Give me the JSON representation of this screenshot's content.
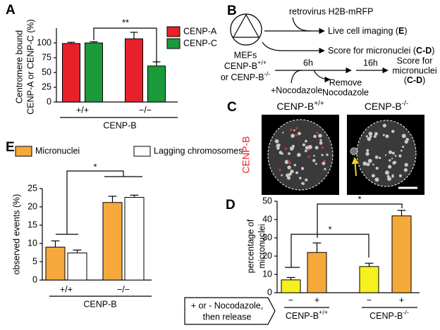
{
  "chart_data": [
    {
      "type": "bar",
      "label": "A",
      "ylabel": [
        "Centromere bound",
        "CENP-A or CENP-C (%)"
      ],
      "xlabel": "CENP-B",
      "categories": [
        "+/+",
        "−/−"
      ],
      "series": [
        {
          "name": "CENP-A",
          "color": "#e8202a",
          "values": [
            99,
            107
          ],
          "errors": [
            2,
            11
          ]
        },
        {
          "name": "CENP-C",
          "color": "#1a9a3a",
          "values": [
            100,
            61
          ],
          "errors": [
            2,
            7
          ]
        }
      ],
      "ylim": [
        0,
        125
      ],
      "yticks": [
        0,
        25,
        50,
        75,
        100
      ],
      "annotations": [
        "**"
      ]
    },
    {
      "type": "bar",
      "label": "E",
      "ylabel": [
        "observed events (%)"
      ],
      "xlabel": "CENP-B",
      "categories": [
        "+/+",
        "−/−"
      ],
      "series": [
        {
          "name": "Micronuclei",
          "color": "#f6a93b",
          "values": [
            9,
            21.2
          ],
          "errors": [
            1.7,
            1.7
          ]
        },
        {
          "name": "Lagging chromosomes",
          "color": "#ffffff",
          "values": [
            7.4,
            22.6
          ],
          "errors": [
            0.8,
            0.6
          ]
        }
      ],
      "ylim": [
        0,
        25
      ],
      "yticks": [
        0,
        5,
        10,
        15,
        20,
        25
      ],
      "annotations": [
        "*"
      ]
    },
    {
      "type": "bar",
      "label": "D",
      "ylabel": [
        "percentage of",
        "micronuclei"
      ],
      "categories": [
        "−",
        "+",
        "−",
        "+"
      ],
      "values": [
        7,
        22,
        14.3,
        42
      ],
      "errors": [
        1.3,
        5.2,
        1.8,
        3
      ],
      "colors": [
        "#f5f01e",
        "#f6a93b",
        "#f5f01e",
        "#f6a93b"
      ],
      "group_labels": [
        {
          "text": "CENP-B",
          "sup": "+/+"
        },
        {
          "text": "CENP-B",
          "sup": "-/-"
        }
      ],
      "note": [
        "+ or - Nocodazole,",
        "then release"
      ],
      "ylim": [
        0,
        50
      ],
      "yticks": [
        0,
        10,
        20,
        30,
        40,
        50
      ],
      "annotations": [
        "*",
        "*"
      ]
    }
  ],
  "diagram": {
    "label": "B",
    "cell": [
      "MEFs",
      {
        "text": "CENP-B",
        "sup": "+/+"
      },
      {
        "text": "or CENP-B",
        "sup": "-/-"
      }
    ],
    "virus": "retrovirus H2B-mRFP",
    "live": [
      "Live cell imaging (",
      "E",
      ")"
    ],
    "score1": [
      "Score for micronuclei (",
      "C-D",
      ")"
    ],
    "drug": "+Nocodazole",
    "t1": "6h",
    "t2": "16h",
    "remove": [
      "Remove",
      "Nocodazole"
    ],
    "score2": [
      "Score for",
      "micronuclei"
    ],
    "score2_ref": [
      "(",
      "C-D",
      ")"
    ]
  },
  "images": {
    "label": "C",
    "stain": "CENP-B",
    "panels": [
      {
        "text": "CENP-B",
        "sup": "+/+"
      },
      {
        "text": "CENP-B",
        "sup": "-/-"
      }
    ]
  }
}
